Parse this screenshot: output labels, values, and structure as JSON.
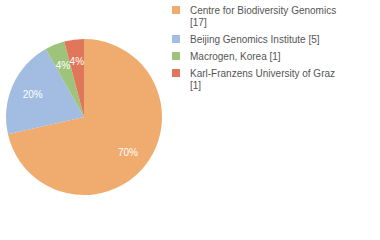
{
  "chart_data": {
    "type": "pie",
    "categories": [
      "Centre for Biodiversity Genomics [17]",
      "Beijing Genomics Institute [5]",
      "Macrogen, Korea [1]",
      "Karl-Franzens University of Graz [1]"
    ],
    "values": [
      70,
      20,
      4,
      4
    ],
    "value_labels": [
      "70%",
      "20%",
      "4%",
      "4%"
    ],
    "colors": [
      "#f0ab6e",
      "#a2bde1",
      "#9dc47a",
      "#e0765a"
    ],
    "data_labels": true,
    "legend": "top-right"
  }
}
